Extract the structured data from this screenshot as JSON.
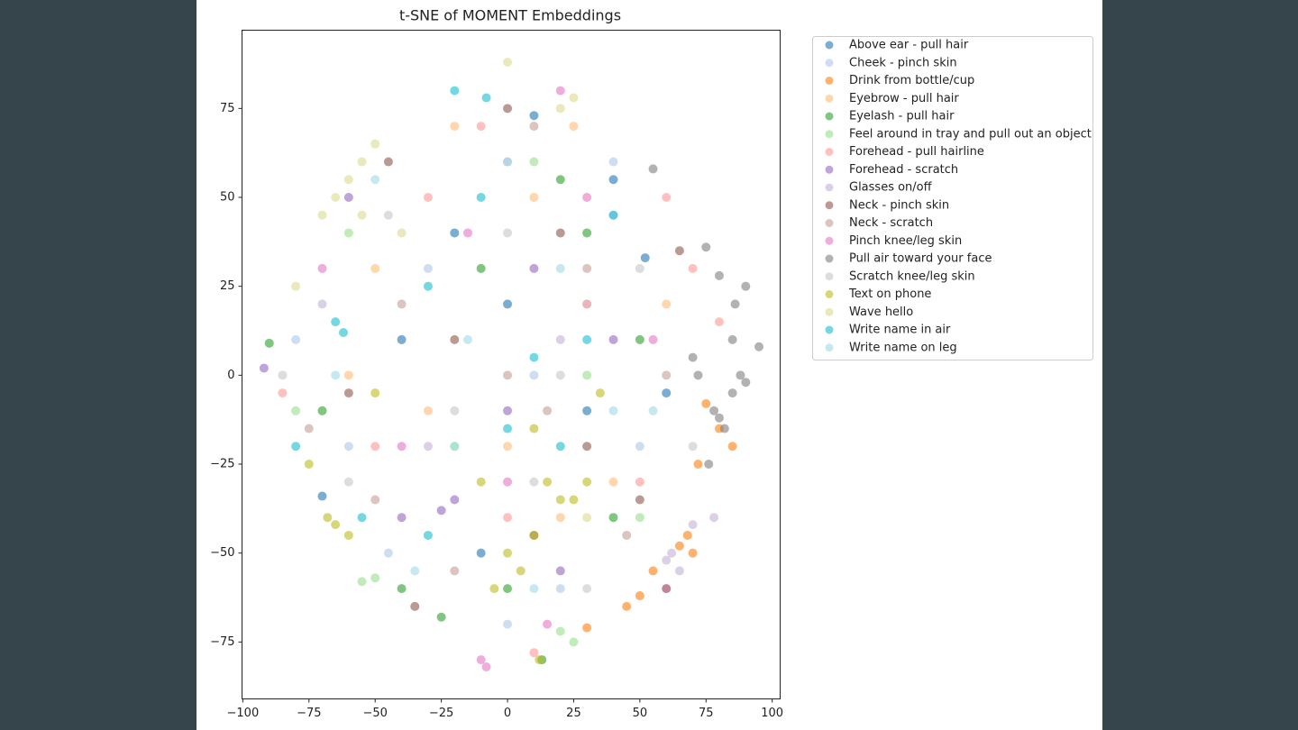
{
  "chart_data": {
    "type": "scatter",
    "title": "t-SNE of MOMENT Embeddings",
    "xlim": [
      -100.3,
      103
    ],
    "ylim": [
      -91,
      97
    ],
    "xticks": [
      {
        "value": -100,
        "label": "−100"
      },
      {
        "value": -75,
        "label": "−75"
      },
      {
        "value": -50,
        "label": "−50"
      },
      {
        "value": -25,
        "label": "−25"
      },
      0,
      25,
      50,
      75,
      100
    ],
    "yticks": [
      {
        "value": -75,
        "label": "−75"
      },
      {
        "value": -50,
        "label": "−50"
      },
      {
        "value": -25,
        "label": "−25"
      },
      0,
      25,
      50,
      75
    ],
    "series": [
      {
        "name": "Above ear - pull hair",
        "color": "#1f77b4",
        "x": [
          -70,
          52,
          10,
          -20,
          30,
          -40,
          60,
          0,
          -10,
          40
        ],
        "y": [
          -34,
          33,
          73,
          40,
          -10,
          10,
          -5,
          20,
          -50,
          55
        ]
      },
      {
        "name": "Cheek - pinch skin",
        "color": "#aec7e8",
        "x": [
          -45,
          -80,
          20,
          40,
          -30,
          10,
          50,
          -60,
          0,
          30
        ],
        "y": [
          -50,
          10,
          -60,
          60,
          30,
          0,
          -20,
          -20,
          -70,
          20
        ]
      },
      {
        "name": "Drink from bottle/cup",
        "color": "#ff7f0e",
        "x": [
          65,
          70,
          50,
          72,
          80,
          85,
          45,
          55,
          75,
          30,
          68,
          60
        ],
        "y": [
          -48,
          -50,
          -62,
          -25,
          -15,
          -20,
          -65,
          -55,
          -8,
          -71,
          -45,
          -60
        ]
      },
      {
        "name": "Eyebrow - pull hair",
        "color": "#ffbb78",
        "x": [
          -20,
          10,
          -50,
          40,
          -30,
          20,
          60,
          0,
          -60,
          25
        ],
        "y": [
          70,
          50,
          30,
          -30,
          -10,
          -40,
          20,
          -20,
          0,
          70
        ]
      },
      {
        "name": "Eyelash - pull hair",
        "color": "#2ca02c",
        "x": [
          -90,
          -40,
          13,
          20,
          -10,
          40,
          50,
          -70,
          0,
          -25,
          30
        ],
        "y": [
          9,
          -60,
          -80,
          55,
          30,
          -40,
          10,
          -10,
          -60,
          -68,
          40
        ]
      },
      {
        "name": "Feel around in tray and pull out an object",
        "color": "#98df8a",
        "x": [
          -55,
          -50,
          20,
          -60,
          30,
          -20,
          10,
          50,
          -80,
          25
        ],
        "y": [
          -58,
          -57,
          -72,
          40,
          0,
          -20,
          60,
          -40,
          -10,
          -75
        ]
      },
      {
        "name": "Forehead - pull hairline",
        "color": "#ff9896",
        "x": [
          70,
          -85,
          10,
          -10,
          50,
          -30,
          30,
          0,
          60,
          -50,
          80
        ],
        "y": [
          30,
          -5,
          -78,
          70,
          -30,
          50,
          20,
          -40,
          50,
          -20,
          15
        ]
      },
      {
        "name": "Forehead - scratch",
        "color": "#9467bd",
        "x": [
          -92,
          -25,
          -20,
          10,
          40,
          -60,
          0,
          60,
          -40,
          20
        ],
        "y": [
          2,
          -38,
          -35,
          30,
          10,
          50,
          -10,
          -60,
          -40,
          -55
        ]
      },
      {
        "name": "Glasses on/off",
        "color": "#c5b0d5",
        "x": [
          60,
          65,
          78,
          62,
          70,
          -70,
          20,
          -30,
          40,
          0
        ],
        "y": [
          -52,
          -55,
          -40,
          -50,
          -42,
          20,
          10,
          -20,
          45,
          60
        ]
      },
      {
        "name": "Neck - pinch skin",
        "color": "#8c564b",
        "x": [
          -35,
          0,
          30,
          -60,
          20,
          50,
          -20,
          10,
          -45,
          65
        ],
        "y": [
          -65,
          75,
          -20,
          -5,
          40,
          -35,
          10,
          -45,
          60,
          35
        ]
      },
      {
        "name": "Neck - scratch",
        "color": "#c49c94",
        "x": [
          -75,
          -50,
          0,
          30,
          -20,
          45,
          15,
          -40,
          10,
          60
        ],
        "y": [
          -15,
          -35,
          0,
          30,
          -55,
          -45,
          -10,
          20,
          70,
          0
        ]
      },
      {
        "name": "Pinch knee/leg skin",
        "color": "#e377c2",
        "x": [
          -10,
          -8,
          20,
          0,
          -40,
          30,
          55,
          -70,
          15,
          -15
        ],
        "y": [
          -80,
          -82,
          80,
          -30,
          -20,
          50,
          10,
          30,
          -70,
          40
        ]
      },
      {
        "name": "Pull air toward your face",
        "color": "#7f7f7f",
        "x": [
          75,
          80,
          85,
          90,
          88,
          78,
          82,
          72,
          85,
          95,
          90,
          76,
          55,
          70,
          80,
          86
        ],
        "y": [
          36,
          28,
          10,
          25,
          0,
          -10,
          -15,
          0,
          -5,
          8,
          -2,
          -25,
          58,
          5,
          -12,
          20
        ]
      },
      {
        "name": "Scratch knee/leg skin",
        "color": "#c7c7c7",
        "x": [
          -85,
          -60,
          0,
          30,
          50,
          -20,
          10,
          -45,
          70,
          20
        ],
        "y": [
          0,
          -30,
          40,
          -60,
          30,
          -10,
          -30,
          45,
          -20,
          0
        ]
      },
      {
        "name": "Text on phone",
        "color": "#bcbd22",
        "x": [
          -65,
          -60,
          -68,
          10,
          20,
          25,
          5,
          0,
          -5,
          15,
          30,
          10,
          -10,
          -75,
          12,
          -50,
          35
        ],
        "y": [
          -42,
          -45,
          -40,
          -45,
          -35,
          -35,
          -55,
          -50,
          -60,
          -30,
          -30,
          -15,
          -30,
          -25,
          -80,
          -5,
          -5
        ]
      },
      {
        "name": "Wave hello",
        "color": "#dbdb8d",
        "x": [
          -60,
          -55,
          -65,
          -50,
          -70,
          0,
          25,
          20,
          -80,
          -40,
          30,
          -55
        ],
        "y": [
          55,
          60,
          50,
          65,
          45,
          88,
          78,
          75,
          25,
          40,
          -40,
          45
        ]
      },
      {
        "name": "Write name in air",
        "color": "#17becf",
        "x": [
          -65,
          -62,
          -30,
          -20,
          -8,
          10,
          0,
          -30,
          40,
          -55,
          20,
          -10,
          -80,
          30
        ],
        "y": [
          15,
          12,
          25,
          80,
          78,
          5,
          -15,
          -45,
          45,
          -40,
          -20,
          50,
          -20,
          10
        ]
      },
      {
        "name": "Write name on leg",
        "color": "#9edae5",
        "x": [
          -50,
          -20,
          0,
          40,
          -65,
          20,
          -35,
          10,
          55,
          -15
        ],
        "y": [
          55,
          -20,
          60,
          -10,
          0,
          30,
          -55,
          -60,
          -10,
          10
        ]
      }
    ]
  }
}
